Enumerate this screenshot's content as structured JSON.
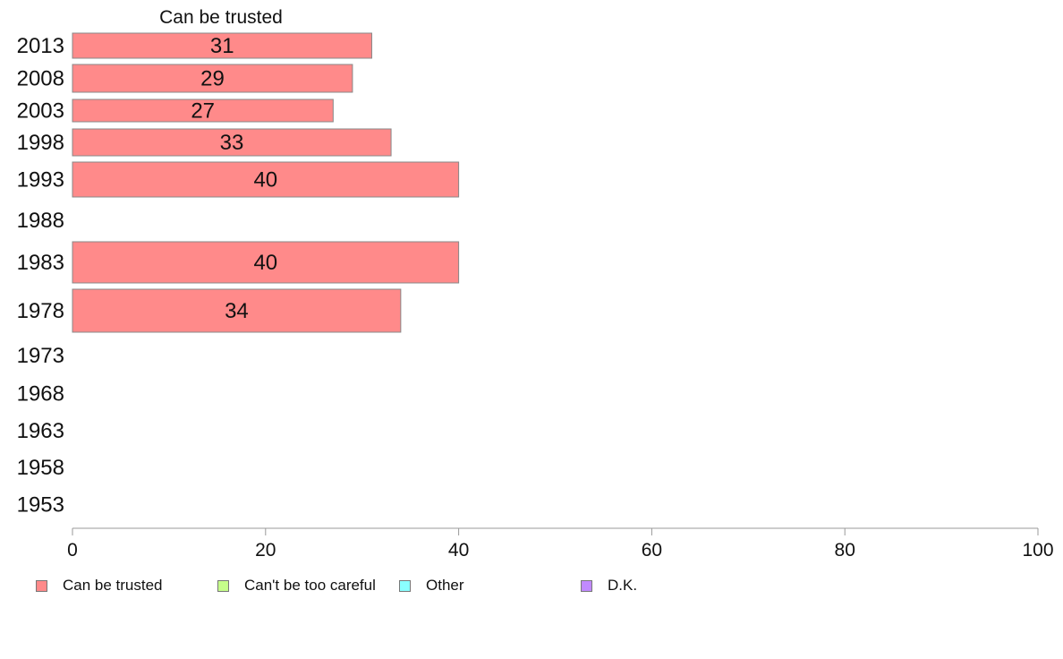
{
  "chart_data": {
    "type": "bar",
    "orientation": "horizontal",
    "title": "Can be trusted",
    "categories": [
      "2013",
      "2008",
      "2003",
      "1998",
      "1993",
      "1988",
      "1983",
      "1978",
      "1973",
      "1968",
      "1963",
      "1958",
      "1953"
    ],
    "series": [
      {
        "name": "Can be trusted",
        "color": "#ff8a8a",
        "values": [
          31,
          29,
          27,
          33,
          40,
          null,
          40,
          34,
          null,
          null,
          null,
          null,
          null
        ]
      }
    ],
    "data_labels": [
      "31",
      "29",
      "27",
      "33",
      "40",
      "",
      "40",
      "34",
      "",
      "",
      "",
      "",
      ""
    ],
    "xlim": [
      0,
      100
    ],
    "xticks": [
      "0",
      "20",
      "40",
      "60",
      "80",
      "100"
    ],
    "grid": false,
    "legend_position": "bottom",
    "legend": [
      {
        "label": "Can be trusted",
        "color": "#ff8a8a"
      },
      {
        "label": "Can't be too careful",
        "color": "#c6ff8a"
      },
      {
        "label": "Other",
        "color": "#8affff"
      },
      {
        "label": "D.K.",
        "color": "#c18aff"
      }
    ]
  }
}
